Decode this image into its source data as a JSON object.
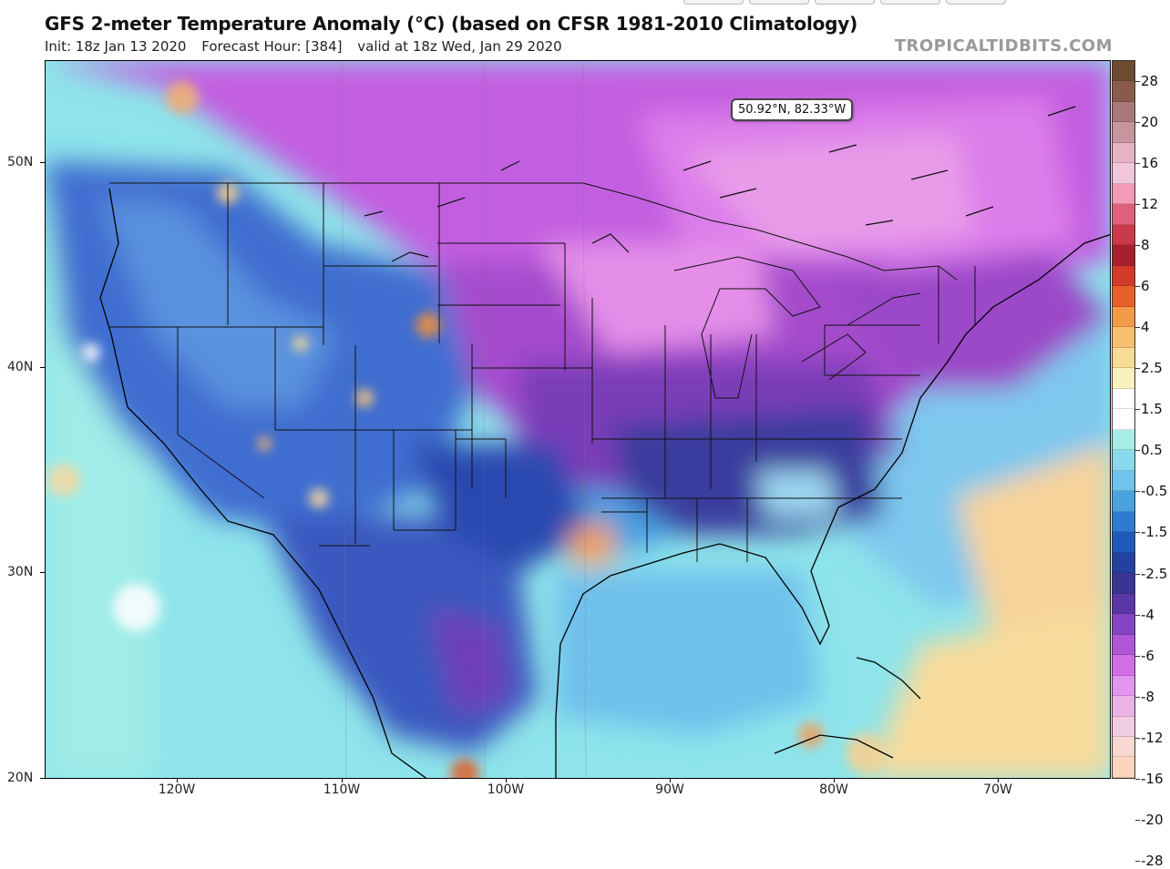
{
  "header": {
    "title": "GFS 2-meter Temperature Anomaly (°C) (based on CFSR 1981-2010 Climatology)",
    "init": "Init: 18z Jan 13 2020",
    "forecast_hour": "Forecast Hour: [384]",
    "valid": "valid at 18z Wed, Jan 29 2020",
    "credit": "TROPICALTIDBITS.COM"
  },
  "tooltip": {
    "coords": "50.92°N, 82.33°W"
  },
  "axes": {
    "lat_labels": [
      "50N",
      "40N",
      "30N",
      "20N"
    ],
    "lon_labels": [
      "120W",
      "110W",
      "100W",
      "90W",
      "80W",
      "70W"
    ]
  },
  "colorbar": {
    "labels": [
      "28",
      "20",
      "16",
      "12",
      "8",
      "6",
      "4",
      "2.5",
      "1.5",
      "0.5",
      "-0.5",
      "-1.5",
      "-2.5",
      "-4",
      "-6",
      "-8",
      "-12",
      "-16",
      "-20",
      "-28"
    ],
    "colors": [
      "#6e4a33",
      "#8a5b4c",
      "#a9787a",
      "#c8949e",
      "#e6b2c4",
      "#f2c6da",
      "#f29ab6",
      "#e0607a",
      "#c93a4a",
      "#a8202e",
      "#d23a2a",
      "#e8602a",
      "#f39a48",
      "#f7c070",
      "#f8dc96",
      "#fbf0c0",
      "#ffffff",
      "#ffffff",
      "#a8ece8",
      "#8ad8ec",
      "#6ec4ec",
      "#4aa2e0",
      "#2e7cd0",
      "#1e5ab8",
      "#2440a0",
      "#3a3494",
      "#5a36a8",
      "#8444c4",
      "#b056d8",
      "#d46ee6",
      "#e296ee",
      "#eab4e8",
      "#f2cce0",
      "#f8d8d0",
      "#fad4bc"
    ]
  }
}
